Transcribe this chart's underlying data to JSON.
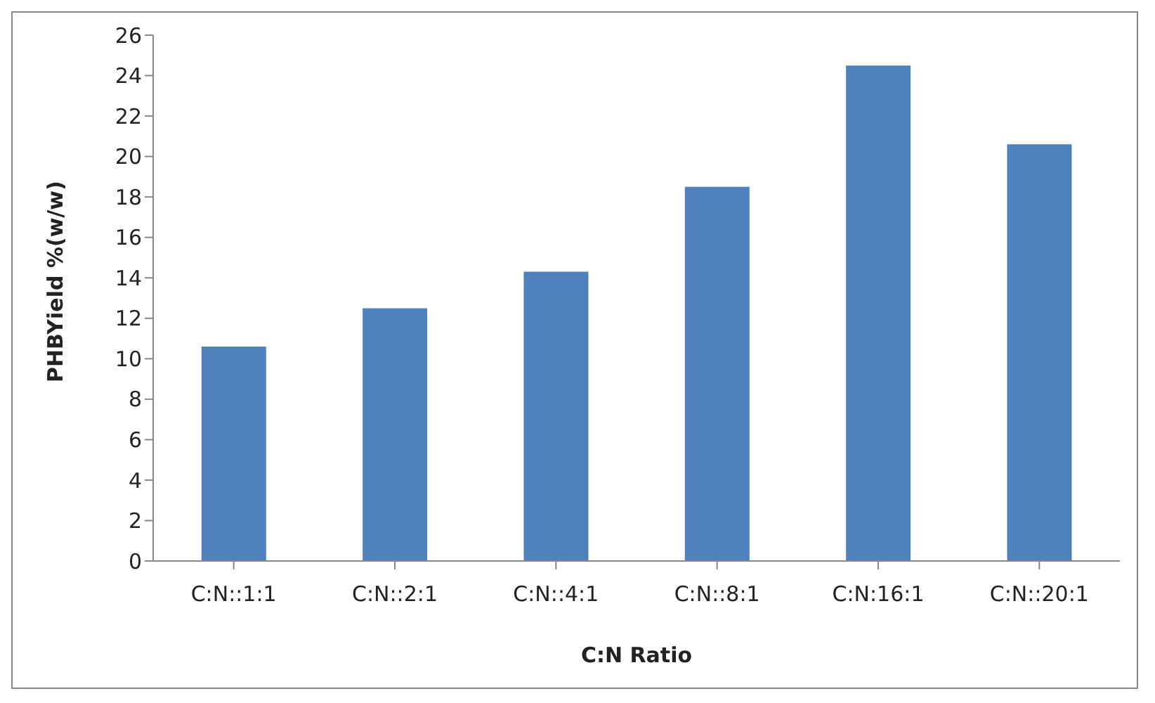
{
  "chart_data": {
    "type": "bar",
    "xlabel": "C:N Ratio",
    "ylabel": "PHBYield %(w/w)",
    "categories": [
      "C:N::1:1",
      "C:N::2:1",
      "C:N::4:1",
      "C:N::8:1",
      "C:N:16:1",
      "C:N::20:1"
    ],
    "values": [
      10.6,
      12.5,
      14.3,
      18.5,
      24.5,
      20.6
    ],
    "color": "#4f81bd",
    "ylim": [
      0,
      26
    ],
    "yticks": [
      0,
      2,
      4,
      6,
      8,
      10,
      12,
      14,
      16,
      18,
      20,
      22,
      24,
      26
    ],
    "grid": false,
    "legend": false
  }
}
